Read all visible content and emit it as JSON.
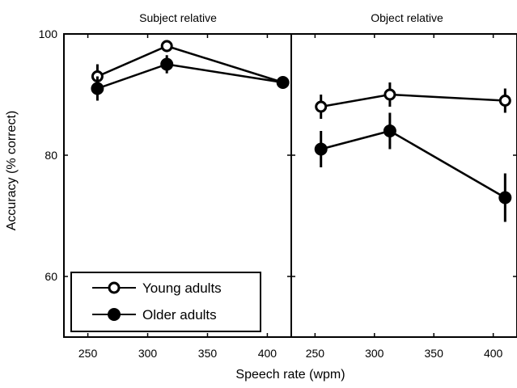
{
  "chart_data": {
    "type": "line",
    "xlabel": "Speech rate (wpm)",
    "ylabel": "Accuracy (% correct)",
    "ylim": [
      50,
      100
    ],
    "xlim": [
      230,
      420
    ],
    "x_ticks": [
      250,
      300,
      350,
      400
    ],
    "y_ticks": [
      60,
      80,
      100
    ],
    "grid": false,
    "legend": {
      "placement": "bottom-left of first panel",
      "entries": [
        {
          "label": "Young adults",
          "marker": "open-circle"
        },
        {
          "label": "Older adults",
          "marker": "filled-circle"
        }
      ]
    },
    "panels": [
      {
        "title": "Subject relative",
        "series": [
          {
            "name": "Young adults",
            "marker": "open-circle",
            "points": [
              {
                "x": 258,
                "y": 93,
                "err": 2
              },
              {
                "x": 316,
                "y": 98,
                "err": 1
              },
              {
                "x": 413,
                "y": 92,
                "err": 1
              }
            ]
          },
          {
            "name": "Older adults",
            "marker": "filled-circle",
            "points": [
              {
                "x": 258,
                "y": 91,
                "err": 2
              },
              {
                "x": 316,
                "y": 95,
                "err": 1.5
              },
              {
                "x": 413,
                "y": 92,
                "err": 1
              }
            ]
          }
        ]
      },
      {
        "title": "Object relative",
        "series": [
          {
            "name": "Young adults",
            "marker": "open-circle",
            "points": [
              {
                "x": 255,
                "y": 88,
                "err": 2
              },
              {
                "x": 313,
                "y": 90,
                "err": 2
              },
              {
                "x": 410,
                "y": 89,
                "err": 2
              }
            ]
          },
          {
            "name": "Older adults",
            "marker": "filled-circle",
            "points": [
              {
                "x": 255,
                "y": 81,
                "err": 3
              },
              {
                "x": 313,
                "y": 84,
                "err": 3
              },
              {
                "x": 410,
                "y": 73,
                "err": 4
              }
            ]
          }
        ]
      }
    ]
  }
}
